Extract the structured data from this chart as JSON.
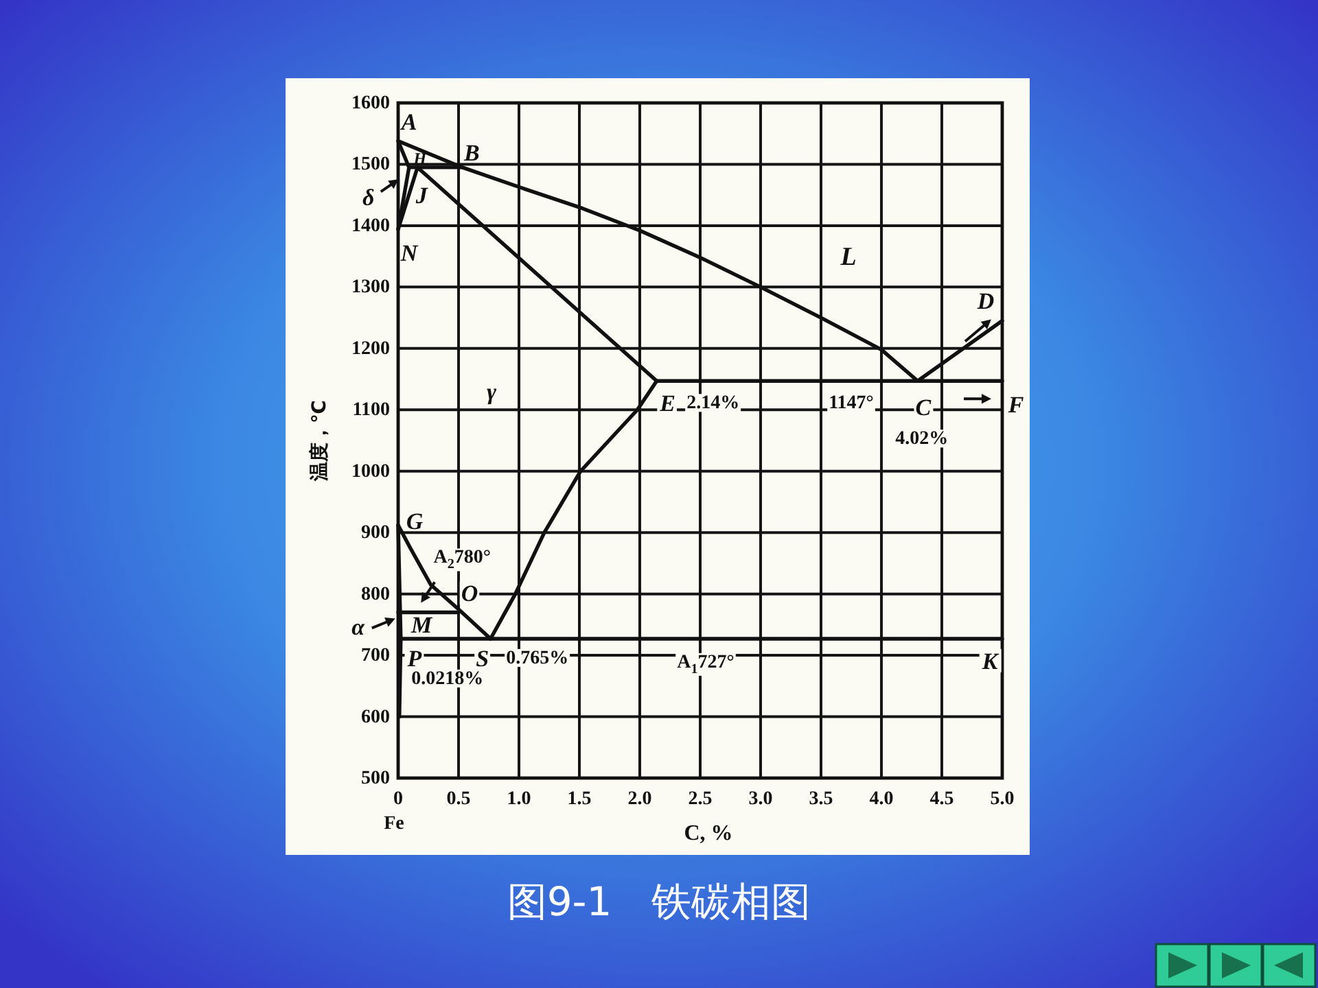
{
  "chart_data": {
    "type": "line",
    "title": "图9-1　铁碳相图",
    "xlabel": "C, %",
    "ylabel": "温度，℃",
    "xlim": [
      0,
      5
    ],
    "ylim": [
      500,
      1600
    ],
    "xticks": [
      0,
      0.5,
      {
        "value": 1,
        "label": "1.0"
      },
      1.5,
      {
        "value": 2,
        "label": "2.0"
      },
      2.5,
      {
        "value": 3,
        "label": "3.0"
      },
      3.5,
      {
        "value": 4,
        "label": "4.0"
      },
      4.5,
      {
        "value": 5,
        "label": "5.0"
      }
    ],
    "yticks": [
      500,
      600,
      700,
      800,
      900,
      1000,
      1100,
      1200,
      1300,
      1400,
      1500,
      1600
    ],
    "grid": true,
    "series": [
      {
        "x": [
          0,
          0.53,
          1.0,
          1.5,
          2.0,
          2.5,
          3.0,
          3.5,
          4.0,
          4.3
        ],
        "values": [
          1538,
          1495,
          1463,
          1430,
          1392,
          1348,
          1300,
          1250,
          1198,
          1147
        ],
        "color": "#111111"
      },
      {
        "x": [
          4.3,
          5.0
        ],
        "values": [
          1147,
          1245
        ],
        "color": "#111111"
      },
      {
        "x": [
          0,
          0.09,
          0
        ],
        "values": [
          1538,
          1495,
          1394
        ],
        "color": "#111111"
      },
      {
        "x": [
          0.09,
          0.53
        ],
        "values": [
          1495,
          1495
        ],
        "color": "#111111"
      },
      {
        "x": [
          0.16,
          0
        ],
        "values": [
          1495,
          1394
        ],
        "color": "#111111"
      },
      {
        "x": [
          0.16,
          2.14
        ],
        "values": [
          1495,
          1147
        ],
        "color": "#111111"
      },
      {
        "x": [
          2.14,
          5.0
        ],
        "values": [
          1147,
          1147
        ],
        "color": "#111111"
      },
      {
        "x": [
          0,
          0.1,
          0.27,
          0.5,
          0.765
        ],
        "values": [
          912,
          875,
          815,
          775,
          727
        ],
        "color": "#111111"
      },
      {
        "x": [
          0.765,
          0.97,
          1.21,
          1.51,
          1.98,
          2.14
        ],
        "values": [
          727,
          800,
          900,
          1000,
          1100,
          1147
        ],
        "color": "#111111"
      },
      {
        "x": [
          0.0218,
          5.0
        ],
        "values": [
          727,
          727
        ],
        "color": "#111111"
      },
      {
        "x": [
          0,
          0.0218,
          0.01
        ],
        "values": [
          912,
          727,
          600
        ],
        "color": "#111111"
      },
      {
        "x": [
          0,
          0.5
        ],
        "values": [
          770,
          770
        ],
        "color": "#111111"
      }
    ],
    "annotations": [
      {
        "text": "A",
        "x": 0,
        "y": 1538
      },
      {
        "text": "H",
        "x": 0.09,
        "y": 1495
      },
      {
        "text": "B",
        "x": 0.53,
        "y": 1495
      },
      {
        "text": "J",
        "x": 0.16,
        "y": 1495
      },
      {
        "text": "N",
        "x": 0,
        "y": 1394
      },
      {
        "text": "δ",
        "x": 0.05,
        "y": 1480
      },
      "L",
      "γ",
      {
        "text": "E",
        "x": 2.14,
        "y": 1147
      },
      {
        "text": "2.14%",
        "x": 2.14,
        "y": 1147
      },
      {
        "text": "1147°",
        "x": 3.75,
        "y": 1147
      },
      {
        "text": "C",
        "x": 4.3,
        "y": 1147
      },
      {
        "text": "4.02%",
        "x": 4.3,
        "y": 1147
      },
      {
        "text": "F",
        "x": 5.0,
        "y": 1147
      },
      {
        "text": "D",
        "x": 5.0,
        "y": 1245
      },
      {
        "text": "G",
        "x": 0,
        "y": 912
      },
      {
        "text": "A$_{2}$780°",
        "x": 0.2,
        "y": 770
      },
      {
        "text": "O",
        "x": 0.5,
        "y": 770
      },
      {
        "text": "M",
        "x": 0,
        "y": 770
      },
      {
        "text": "α",
        "x": 0.01,
        "y": 760
      },
      {
        "text": "P",
        "x": 0.0218,
        "y": 727
      },
      {
        "text": "0.0218%",
        "x": 0.0218,
        "y": 727
      },
      {
        "text": "S",
        "x": 0.765,
        "y": 727
      },
      {
        "text": "0.765%",
        "x": 0.765,
        "y": 727
      },
      {
        "text": "A$_{1}$727°",
        "x": 2.5,
        "y": 727
      },
      {
        "text": "K",
        "x": 5.0,
        "y": 727
      },
      "Fe"
    ]
  }
}
